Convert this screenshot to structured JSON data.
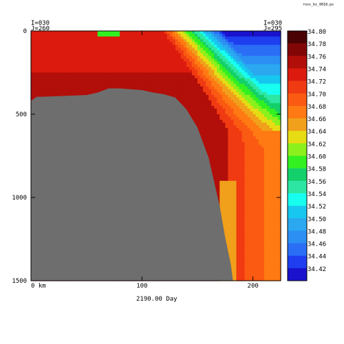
{
  "header": {
    "file_tag": "ross_bs_0018.ps",
    "left_index": [
      "I=030",
      "J=260"
    ],
    "right_index": [
      "I=030",
      "J=295"
    ]
  },
  "footer": {
    "time_label": "2190.00 Day"
  },
  "colors": {
    "ramp": [
      "#1a12cc",
      "#1e3ef0",
      "#2a6ef6",
      "#2b8ff3",
      "#2ba8f0",
      "#17c7ef",
      "#17ffef",
      "#2de6a3",
      "#14d06a",
      "#33f020",
      "#8cf01c",
      "#e6dc14",
      "#f0a01a",
      "#ff7a12",
      "#fa5a12",
      "#f03a12",
      "#dc1a0e",
      "#b20e0a",
      "#820606",
      "#4a0202"
    ],
    "land": "#6e6e6e"
  },
  "chart_data": {
    "type": "heatmap",
    "x_ticks": [
      {
        "value": 0,
        "label": "0 km"
      },
      {
        "value": 100,
        "label": "100"
      },
      {
        "value": 200,
        "label": "200"
      }
    ],
    "y_ticks": [
      {
        "value": 0,
        "label": "0"
      },
      {
        "value": 500,
        "label": "500"
      },
      {
        "value": 1000,
        "label": "1000"
      },
      {
        "value": 1500,
        "label": "1500"
      }
    ],
    "xlim": [
      0,
      225
    ],
    "ylim": [
      1500,
      0
    ],
    "colorbar": {
      "labels": [
        "34.80",
        "34.78",
        "34.76",
        "34.74",
        "34.72",
        "34.70",
        "34.68",
        "34.66",
        "34.64",
        "34.62",
        "34.60",
        "34.58",
        "34.56",
        "34.54",
        "34.52",
        "34.50",
        "34.48",
        "34.46",
        "34.44",
        "34.42"
      ]
    },
    "topography_depth": [
      [
        0,
        420
      ],
      [
        5,
        395
      ],
      [
        10,
        395
      ],
      [
        30,
        390
      ],
      [
        50,
        385
      ],
      [
        60,
        370
      ],
      [
        70,
        345
      ],
      [
        80,
        345
      ],
      [
        90,
        350
      ],
      [
        100,
        355
      ],
      [
        110,
        370
      ],
      [
        120,
        380
      ],
      [
        130,
        400
      ],
      [
        140,
        470
      ],
      [
        150,
        580
      ],
      [
        160,
        760
      ],
      [
        170,
        1050
      ],
      [
        175,
        1240
      ],
      [
        180,
        1400
      ],
      [
        182,
        1500
      ]
    ]
  }
}
